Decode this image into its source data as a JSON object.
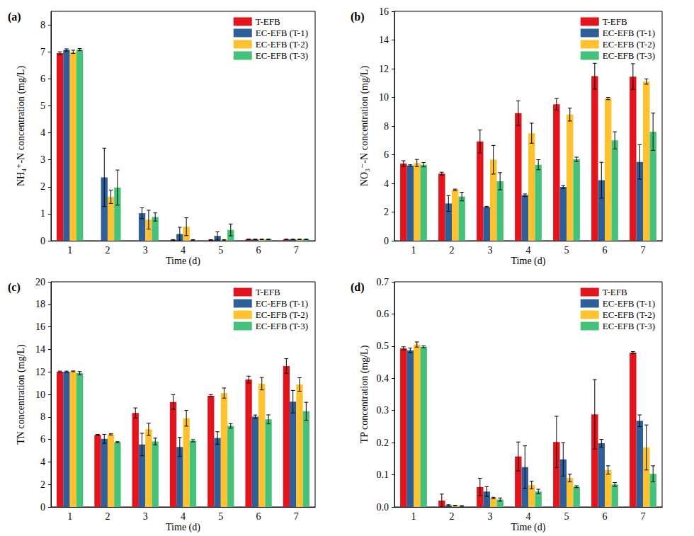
{
  "chart_data": [
    {
      "type": "bar",
      "title": "(a)",
      "x_label": "Time (d)",
      "y_label": "NH₄⁺-N concentration (mg/L)",
      "categories": [
        "1",
        "2",
        "3",
        "4",
        "5",
        "6",
        "7"
      ],
      "ylim": [
        0,
        8.5
      ],
      "yticks": [
        0,
        1,
        2,
        3,
        4,
        5,
        6,
        7,
        8
      ],
      "legend": "top-right",
      "series": [
        {
          "name": "T-EFB",
          "color": "#e3141b",
          "values": [
            6.95,
            0,
            0,
            0.03,
            0.03,
            0.05,
            0.05
          ],
          "errors": [
            0.05,
            0,
            0,
            0.01,
            0.01,
            0.01,
            0.01
          ]
        },
        {
          "name": "EC-EFB (T-1)",
          "color": "#2f5f98",
          "values": [
            7.07,
            2.35,
            1.02,
            0.25,
            0.18,
            0.05,
            0.05
          ],
          "errors": [
            0.04,
            1.08,
            0.2,
            0.25,
            0.15,
            0.01,
            0.01
          ]
        },
        {
          "name": "EC-EFB (T-2)",
          "color": "#fdc22e",
          "values": [
            7.0,
            1.63,
            0.78,
            0.52,
            0.03,
            0.05,
            0.05
          ],
          "errors": [
            0.06,
            0.25,
            0.35,
            0.33,
            0.01,
            0.01,
            0.01
          ]
        },
        {
          "name": "EC-EFB (T-3)",
          "color": "#45c27a",
          "values": [
            7.08,
            1.97,
            0.88,
            0.03,
            0.4,
            0.05,
            0.05
          ],
          "errors": [
            0.04,
            0.65,
            0.15,
            0.01,
            0.22,
            0.01,
            0.01
          ]
        }
      ]
    },
    {
      "type": "bar",
      "title": "(b)",
      "x_label": "Time (d)",
      "y_label": "NO₃⁻-N concentration (mg/L)",
      "categories": [
        "1",
        "2",
        "3",
        "4",
        "5",
        "6",
        "7"
      ],
      "ylim": [
        0,
        16
      ],
      "yticks": [
        0,
        2,
        4,
        6,
        8,
        10,
        12,
        14,
        16
      ],
      "legend": "top-right",
      "series": [
        {
          "name": "T-EFB",
          "color": "#e3141b",
          "values": [
            5.38,
            4.68,
            6.92,
            8.9,
            9.52,
            11.48,
            11.45
          ],
          "errors": [
            0.2,
            0.1,
            0.8,
            0.85,
            0.4,
            0.9,
            0.9
          ]
        },
        {
          "name": "EC-EFB (T-1)",
          "color": "#2f5f98",
          "values": [
            5.25,
            2.6,
            2.35,
            3.18,
            3.75,
            4.22,
            5.5
          ],
          "errors": [
            0.05,
            0.55,
            0.05,
            0.08,
            0.1,
            1.25,
            1.2
          ]
        },
        {
          "name": "EC-EFB (T-2)",
          "color": "#fdc22e",
          "values": [
            5.42,
            3.55,
            5.65,
            7.5,
            8.8,
            9.92,
            11.1
          ],
          "errors": [
            0.25,
            0.05,
            1.0,
            0.7,
            0.45,
            0.08,
            0.18
          ]
        },
        {
          "name": "EC-EFB (T-3)",
          "color": "#45c27a",
          "values": [
            5.3,
            3.08,
            4.15,
            5.3,
            5.68,
            7.0,
            7.6
          ],
          "errors": [
            0.15,
            0.3,
            0.6,
            0.35,
            0.15,
            0.6,
            1.3
          ]
        }
      ]
    },
    {
      "type": "bar",
      "title": "(c)",
      "x_label": "Time (d)",
      "y_label": "TN concentration (mg/L)",
      "categories": [
        "1",
        "2",
        "3",
        "4",
        "5",
        "6",
        "7"
      ],
      "ylim": [
        0,
        20
      ],
      "yticks": [
        0,
        2,
        4,
        6,
        8,
        10,
        12,
        14,
        16,
        18,
        20
      ],
      "legend": "top-right",
      "series": [
        {
          "name": "T-EFB",
          "color": "#e3141b",
          "values": [
            12.02,
            6.4,
            8.35,
            9.33,
            9.88,
            11.32,
            12.52
          ],
          "errors": [
            0.05,
            0.05,
            0.45,
            0.65,
            0.1,
            0.3,
            0.65
          ]
        },
        {
          "name": "EC-EFB (T-1)",
          "color": "#2f5f98",
          "values": [
            12.02,
            6.05,
            5.55,
            5.33,
            6.13,
            8.02,
            9.35
          ],
          "errors": [
            0.05,
            0.4,
            1.0,
            0.85,
            0.55,
            0.15,
            1.0
          ]
        },
        {
          "name": "EC-EFB (T-2)",
          "color": "#fdc22e",
          "values": [
            12.05,
            6.45,
            6.9,
            7.88,
            10.12,
            10.95,
            10.88
          ],
          "errors": [
            0.03,
            0.05,
            0.55,
            0.7,
            0.45,
            0.55,
            0.6
          ]
        },
        {
          "name": "EC-EFB (T-3)",
          "color": "#45c27a",
          "values": [
            11.88,
            5.75,
            5.82,
            5.88,
            7.2,
            7.78,
            8.5
          ],
          "errors": [
            0.15,
            0.05,
            0.3,
            0.1,
            0.2,
            0.4,
            0.8
          ]
        }
      ]
    },
    {
      "type": "bar",
      "title": "(d)",
      "x_label": "Time (d)",
      "y_label": "TP concentration (mg/L)",
      "categories": [
        "1",
        "2",
        "3",
        "4",
        "5",
        "6",
        "7"
      ],
      "ylim": [
        0,
        0.7
      ],
      "yticks": [
        {
          "value": 0,
          "label": "0.0"
        },
        0.1,
        0.2,
        0.3,
        0.4,
        0.5,
        0.6,
        0.7
      ],
      "legend": "top-right",
      "series": [
        {
          "name": "T-EFB",
          "color": "#e3141b",
          "values": [
            0.493,
            0.02,
            0.062,
            0.157,
            0.202,
            0.288,
            0.48
          ],
          "errors": [
            0.005,
            0.02,
            0.027,
            0.045,
            0.08,
            0.108,
            0.003
          ]
        },
        {
          "name": "EC-EFB (T-1)",
          "color": "#2f5f98",
          "values": [
            0.487,
            0.005,
            0.048,
            0.124,
            0.148,
            0.198,
            0.268
          ],
          "errors": [
            0.007,
            0.002,
            0.015,
            0.066,
            0.052,
            0.012,
            0.018
          ]
        },
        {
          "name": "EC-EFB (T-2)",
          "color": "#fdc22e",
          "values": [
            0.505,
            0.004,
            0.028,
            0.068,
            0.09,
            0.115,
            0.185
          ],
          "errors": [
            0.008,
            0.001,
            0.002,
            0.012,
            0.012,
            0.013,
            0.07
          ]
        },
        {
          "name": "EC-EFB (T-3)",
          "color": "#45c27a",
          "values": [
            0.498,
            0.003,
            0.023,
            0.048,
            0.063,
            0.07,
            0.103
          ],
          "errors": [
            0.003,
            0.001,
            0.005,
            0.007,
            0.003,
            0.006,
            0.025
          ]
        }
      ]
    }
  ]
}
